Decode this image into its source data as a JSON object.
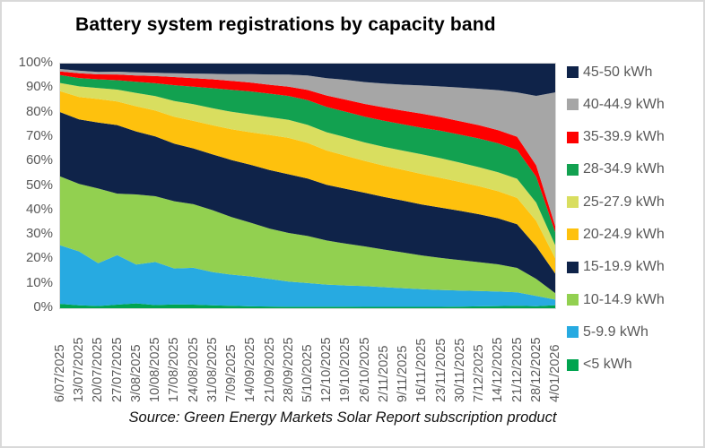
{
  "title": "Battery system registrations by capacity band",
  "source": "Source: Green Energy Markets Solar Report subscription product",
  "chart_data": {
    "type": "area",
    "stacked": true,
    "normalized_percent": true,
    "title": "Battery system registrations by capacity band",
    "xlabel": "",
    "ylabel": "",
    "ylim": [
      0,
      100
    ],
    "grid": false,
    "legend_position": "right",
    "yticks": [
      "100%",
      "90%",
      "80%",
      "70%",
      "60%",
      "50%",
      "40%",
      "30%",
      "20%",
      "10%",
      "0%"
    ],
    "x": [
      "6/07/2025",
      "13/07/2025",
      "20/07/2025",
      "27/07/2025",
      "3/08/2025",
      "10/08/2025",
      "17/08/2025",
      "24/08/2025",
      "31/08/2025",
      "7/09/2025",
      "14/09/2025",
      "21/09/2025",
      "28/09/2025",
      "5/10/2025",
      "12/10/2025",
      "19/10/2025",
      "26/10/2025",
      "2/11/2025",
      "9/11/2025",
      "16/11/2025",
      "23/11/2025",
      "30/11/2025",
      "7/12/2025",
      "14/12/2025",
      "21/12/2025",
      "28/12/2025",
      "4/01/2026"
    ],
    "series": [
      {
        "name": "<5 kWh",
        "color": "#00A44F",
        "values": [
          1.8,
          1.2,
          0.9,
          1.5,
          2.0,
          1.3,
          1.6,
          1.5,
          1.2,
          1.0,
          0.8,
          0.7,
          0.6,
          0.6,
          0.6,
          0.6,
          0.6,
          0.6,
          0.6,
          0.6,
          0.6,
          0.7,
          0.8,
          0.9,
          1.0,
          0.8,
          1.2
        ]
      },
      {
        "name": "5-9.9 kWh",
        "color": "#27AAE1",
        "values": [
          23.9,
          22.0,
          17.5,
          21.0,
          16.0,
          18.0,
          15.0,
          15.5,
          14.0,
          13.0,
          12.5,
          11.5,
          10.5,
          10.0,
          9.5,
          9.2,
          9.0,
          8.6,
          8.2,
          7.8,
          7.4,
          7.0,
          6.6,
          6.2,
          5.6,
          4.2,
          2.2
        ]
      },
      {
        "name": "10-14.9 kWh",
        "color": "#92D050",
        "values": [
          28.2,
          27.6,
          30.6,
          26.0,
          29.0,
          27.5,
          28.0,
          26.8,
          26.0,
          24.0,
          22.5,
          21.0,
          20.3,
          19.8,
          18.8,
          18.0,
          17.2,
          16.4,
          15.6,
          14.8,
          14.0,
          13.2,
          12.4,
          11.6,
          10.2,
          6.8,
          2.6
        ]
      },
      {
        "name": "15-19.9 kWh",
        "color": "#0F2349",
        "values": [
          26.3,
          26.3,
          27.0,
          29.0,
          26.0,
          25.0,
          24.0,
          23.5,
          23.4,
          23.8,
          24.2,
          24.4,
          24.5,
          24.2,
          23.8,
          23.6,
          23.3,
          23.0,
          22.7,
          22.4,
          22.0,
          21.4,
          20.6,
          19.6,
          18.2,
          13.2,
          7.8
        ]
      },
      {
        "name": "20-24.9 kWh",
        "color": "#FEC10D",
        "values": [
          8.5,
          9.2,
          9.6,
          10.0,
          10.4,
          10.8,
          11.2,
          11.6,
          12.2,
          12.8,
          13.6,
          14.6,
          15.2,
          15.0,
          14.6,
          14.2,
          13.8,
          13.6,
          13.5,
          13.4,
          13.0,
          12.5,
          12.0,
          11.5,
          11.0,
          10.2,
          6.0
        ]
      },
      {
        "name": "25-27.9 kWh",
        "color": "#D9DE5F",
        "values": [
          3.4,
          4.3,
          4.5,
          5.0,
          5.5,
          6.0,
          6.6,
          7.0,
          7.2,
          7.3,
          7.4,
          7.4,
          7.5,
          7.6,
          7.8,
          8.0,
          8.0,
          8.2,
          8.4,
          8.6,
          8.6,
          8.4,
          8.2,
          8.1,
          8.0,
          7.4,
          5.2
        ]
      },
      {
        "name": "28-34.9 kWh",
        "color": "#12A150",
        "values": [
          3.2,
          3.4,
          3.6,
          4.0,
          4.6,
          5.4,
          6.6,
          7.4,
          8.4,
          9.2,
          9.7,
          9.8,
          10.0,
          10.4,
          10.8,
          11.0,
          11.2,
          11.4,
          11.5,
          11.7,
          12.0,
          12.2,
          12.3,
          12.3,
          12.0,
          10.4,
          5.2
        ]
      },
      {
        "name": "35-39.9 kWh",
        "color": "#FE0000",
        "values": [
          1.5,
          2.0,
          2.0,
          2.4,
          2.6,
          3.0,
          3.4,
          3.6,
          3.7,
          3.7,
          3.7,
          3.7,
          3.9,
          4.3,
          4.9,
          5.2,
          5.5,
          5.8,
          6.0,
          6.2,
          6.0,
          5.8,
          5.7,
          5.6,
          5.5,
          4.6,
          2.4
        ]
      },
      {
        "name": "40-44.9 kWh",
        "color": "#A6A6A6",
        "values": [
          1.0,
          1.0,
          1.0,
          1.2,
          1.3,
          1.4,
          1.6,
          1.9,
          2.3,
          2.8,
          3.5,
          4.3,
          5.0,
          6.1,
          7.4,
          8.5,
          9.5,
          10.4,
          11.4,
          12.4,
          13.4,
          14.6,
          15.7,
          17.0,
          18.5,
          28.0,
          53.0
        ]
      },
      {
        "name": "45-50 kWh",
        "color": "#0F2349",
        "values": [
          2.2,
          2.9,
          3.4,
          3.4,
          3.6,
          3.8,
          4.0,
          4.2,
          4.3,
          4.4,
          4.4,
          4.5,
          4.6,
          5.0,
          6.2,
          7.0,
          8.0,
          8.7,
          9.2,
          9.6,
          10.0,
          10.4,
          10.8,
          11.3,
          12.0,
          13.0,
          11.4
        ]
      }
    ],
    "legend_order_top_to_bottom": [
      "45-50 kWh",
      "40-44.9 kWh",
      "35-39.9 kWh",
      "28-34.9 kWh",
      "25-27.9 kWh",
      "20-24.9 kWh",
      "15-19.9 kWh",
      "10-14.9 kWh",
      "5-9.9 kWh",
      "<5 kWh"
    ]
  }
}
